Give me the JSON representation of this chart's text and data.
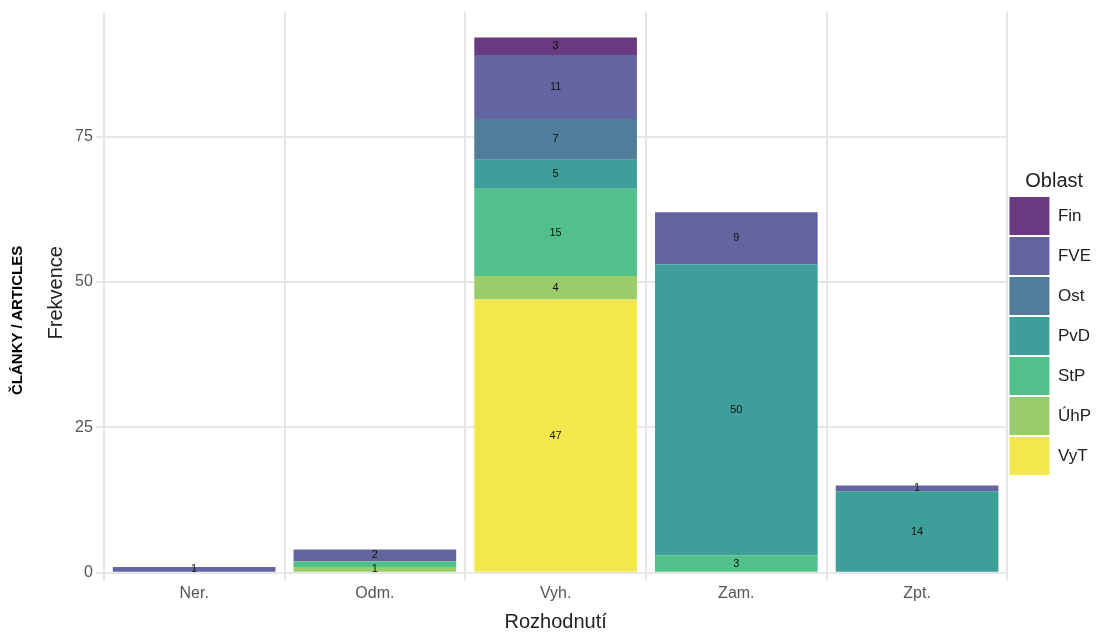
{
  "chart_data": {
    "type": "bar",
    "stacked": true,
    "xlabel": "Rozhodnutí",
    "ylabel": "Frekvence",
    "legend_title": "Oblast",
    "legend": "right",
    "categories": [
      "Ner.",
      "Odm.",
      "Vyh.",
      "Zam.",
      "Zpt."
    ],
    "ylim": [
      0,
      96.3
    ],
    "yticks": [
      0,
      25,
      50,
      75
    ],
    "grid": true,
    "series": [
      {
        "name": "VyT",
        "color": "#f2e84e",
        "values": [
          0,
          0,
          47,
          0,
          0
        ],
        "value_labels": [
          null,
          null,
          "47",
          null,
          null
        ]
      },
      {
        "name": "ÚhP",
        "color": "#9acd6a",
        "values": [
          0,
          1,
          4,
          0,
          0
        ],
        "value_labels": [
          null,
          "1",
          "4",
          null,
          null
        ]
      },
      {
        "name": "StP",
        "color": "#52c08a",
        "values": [
          0,
          1,
          15,
          3,
          0
        ],
        "value_labels": [
          null,
          null,
          "15",
          "3",
          null
        ]
      },
      {
        "name": "PvD",
        "color": "#3d9e9a",
        "values": [
          0,
          0,
          5,
          50,
          14
        ],
        "value_labels": [
          null,
          null,
          "5",
          "50",
          "14"
        ]
      },
      {
        "name": "Ost",
        "color": "#4f7d9a",
        "values": [
          0,
          0,
          7,
          0,
          0
        ],
        "value_labels": [
          null,
          null,
          "7",
          null,
          null
        ]
      },
      {
        "name": "FVE",
        "color": "#6464a0",
        "values": [
          1,
          2,
          11,
          9,
          1
        ],
        "value_labels": [
          "1",
          "2",
          "11",
          "9",
          "1"
        ]
      },
      {
        "name": "Fin",
        "color": "#6a3a80",
        "values": [
          0,
          0,
          3,
          0,
          0
        ],
        "value_labels": [
          null,
          null,
          "3",
          null,
          null
        ]
      }
    ],
    "annotations": [
      "ČLÁNKY / ARTICLES"
    ]
  }
}
